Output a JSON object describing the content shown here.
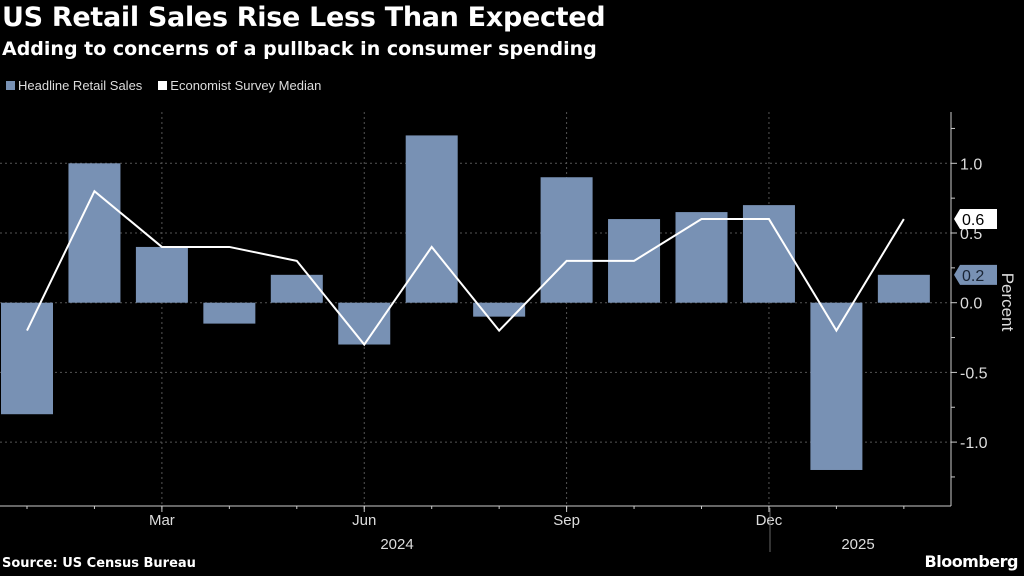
{
  "title": "US Retail Sales Rise Less Than Expected",
  "subtitle": "Adding to concerns of a pullback in consumer spending",
  "source": "Source: US Census Bureau",
  "brand": "Bloomberg",
  "colors": {
    "bars": "#7891b4",
    "line": "#ffffff",
    "background": "#000000"
  },
  "chart_data": {
    "type": "bar+line",
    "title": "US Retail Sales Rise Less Than Expected",
    "ylabel": "Percent",
    "ylim": [
      -1.4,
      1.4
    ],
    "yticks": [
      -1.0,
      -0.5,
      0.0,
      0.5,
      1.0
    ],
    "ytick_labels": [
      "-1.0",
      "-0.5",
      "0.0",
      "0.5",
      "1.0"
    ],
    "grid": true,
    "legend_position": "top-left",
    "categories": [
      "Jan 2024",
      "Feb 2024",
      "Mar 2024",
      "Apr 2024",
      "May 2024",
      "Jun 2024",
      "Jul 2024",
      "Aug 2024",
      "Sep 2024",
      "Oct 2024",
      "Nov 2024",
      "Dec 2024",
      "Jan 2025",
      "Feb 2025"
    ],
    "xtick_labels": [
      {
        "index": 2,
        "label": "Mar"
      },
      {
        "index": 5,
        "label": "Jun"
      },
      {
        "index": 8,
        "label": "Sep"
      },
      {
        "index": 11,
        "label": "Dec"
      }
    ],
    "year_labels": [
      {
        "label": "2024",
        "from": 0,
        "to": 11
      },
      {
        "label": "2025",
        "from": 12,
        "to": 13
      }
    ],
    "series": [
      {
        "name": "Headline Retail Sales",
        "type": "bar",
        "values": [
          -0.8,
          1.0,
          0.4,
          -0.15,
          0.2,
          -0.3,
          1.2,
          -0.1,
          0.9,
          0.6,
          0.65,
          0.7,
          -1.2,
          0.2
        ],
        "last_label": "0.2"
      },
      {
        "name": "Economist Survey Median",
        "type": "line",
        "values": [
          -0.2,
          0.8,
          0.4,
          0.4,
          0.3,
          -0.3,
          0.4,
          -0.2,
          0.3,
          0.3,
          0.6,
          0.6,
          -0.2,
          0.6
        ],
        "last_label": "0.6"
      }
    ]
  }
}
